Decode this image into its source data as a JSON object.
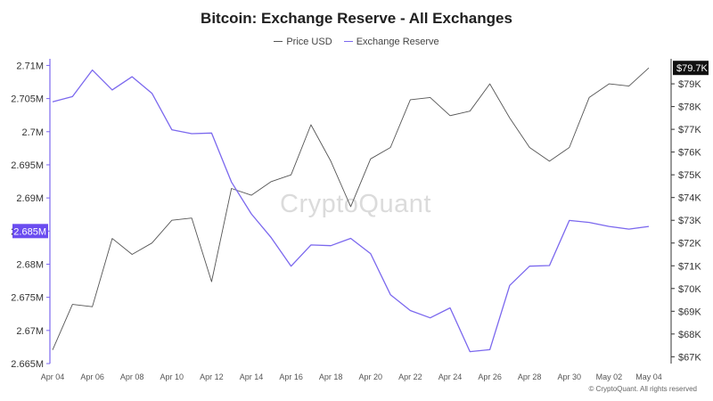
{
  "title": "Bitcoin: Exchange Reserve - All Exchanges",
  "legend": {
    "price_label": "Price USD",
    "reserve_label": "Exchange Reserve"
  },
  "watermark": "CryptoQuant",
  "copyright": "© CryptoQuant. All rights reserved",
  "colors": {
    "price": "#555555",
    "reserve": "#7b68ee",
    "left_axis": "#7b68ee",
    "badge_left_bg": "#6a4cf0",
    "badge_right_bg": "#111111"
  },
  "chart_data": {
    "type": "line",
    "title": "Bitcoin: Exchange Reserve - All Exchanges",
    "x_tick_labels": [
      "Apr 04",
      "Apr 06",
      "Apr 08",
      "Apr 10",
      "Apr 12",
      "Apr 14",
      "Apr 16",
      "Apr 18",
      "Apr 20",
      "Apr 22",
      "Apr 24",
      "Apr 26",
      "Apr 28",
      "Apr 30",
      "May 02",
      "May 04"
    ],
    "x": [
      "Apr 04",
      "Apr 05",
      "Apr 06",
      "Apr 07",
      "Apr 08",
      "Apr 09",
      "Apr 10",
      "Apr 11",
      "Apr 12",
      "Apr 13",
      "Apr 14",
      "Apr 15",
      "Apr 16",
      "Apr 17",
      "Apr 18",
      "Apr 19",
      "Apr 20",
      "Apr 21",
      "Apr 22",
      "Apr 23",
      "Apr 24",
      "Apr 25",
      "Apr 26",
      "Apr 27",
      "Apr 28",
      "Apr 29",
      "Apr 30",
      "May 01",
      "May 02",
      "May 03",
      "May 04"
    ],
    "left_axis": {
      "ylim": [
        2.665,
        2.711
      ],
      "ticks": [
        2.71,
        2.705,
        2.7,
        2.695,
        2.69,
        2.685,
        2.68,
        2.675,
        2.67,
        2.665
      ],
      "tick_labels": [
        "2.71M",
        "2.705M",
        "2.7M",
        "2.695M",
        "2.69M",
        "2.685M",
        "2.68M",
        "2.675M",
        "2.67M",
        "2.665M"
      ],
      "highlight_label": "2.685M"
    },
    "right_axis": {
      "ylim": [
        66.7,
        80.1
      ],
      "ticks": [
        79,
        78,
        77,
        76,
        75,
        74,
        73,
        72,
        71,
        70,
        69,
        68,
        67
      ],
      "tick_labels": [
        "$79K",
        "$78K",
        "$77K",
        "$76K",
        "$75K",
        "$74K",
        "$73K",
        "$72K",
        "$71K",
        "$70K",
        "$69K",
        "$68K",
        "$67K"
      ],
      "highlight_label": "$79.7K"
    },
    "series": [
      {
        "name": "Price USD",
        "axis": "right",
        "values": [
          67.3,
          69.3,
          69.2,
          72.2,
          71.5,
          72.0,
          73.0,
          73.1,
          70.3,
          74.4,
          74.1,
          74.7,
          75.0,
          77.2,
          75.6,
          73.6,
          75.7,
          76.2,
          78.3,
          78.4,
          77.6,
          77.8,
          79.0,
          77.5,
          76.2,
          75.6,
          76.2,
          78.4,
          79.0,
          78.9,
          79.7
        ]
      },
      {
        "name": "Exchange Reserve",
        "axis": "left",
        "values": [
          2.7045,
          2.7053,
          2.7093,
          2.7063,
          2.7083,
          2.7058,
          2.7003,
          2.6997,
          2.6998,
          2.6924,
          2.6876,
          2.684,
          2.6797,
          2.6829,
          2.6828,
          2.6839,
          2.6816,
          2.6754,
          2.673,
          2.6719,
          2.6734,
          2.6668,
          2.6671,
          2.6768,
          2.6797,
          2.6798,
          2.6866,
          2.6863,
          2.6857,
          2.6853,
          2.6857
        ]
      }
    ],
    "grid": false,
    "legend_position": "top-center"
  }
}
